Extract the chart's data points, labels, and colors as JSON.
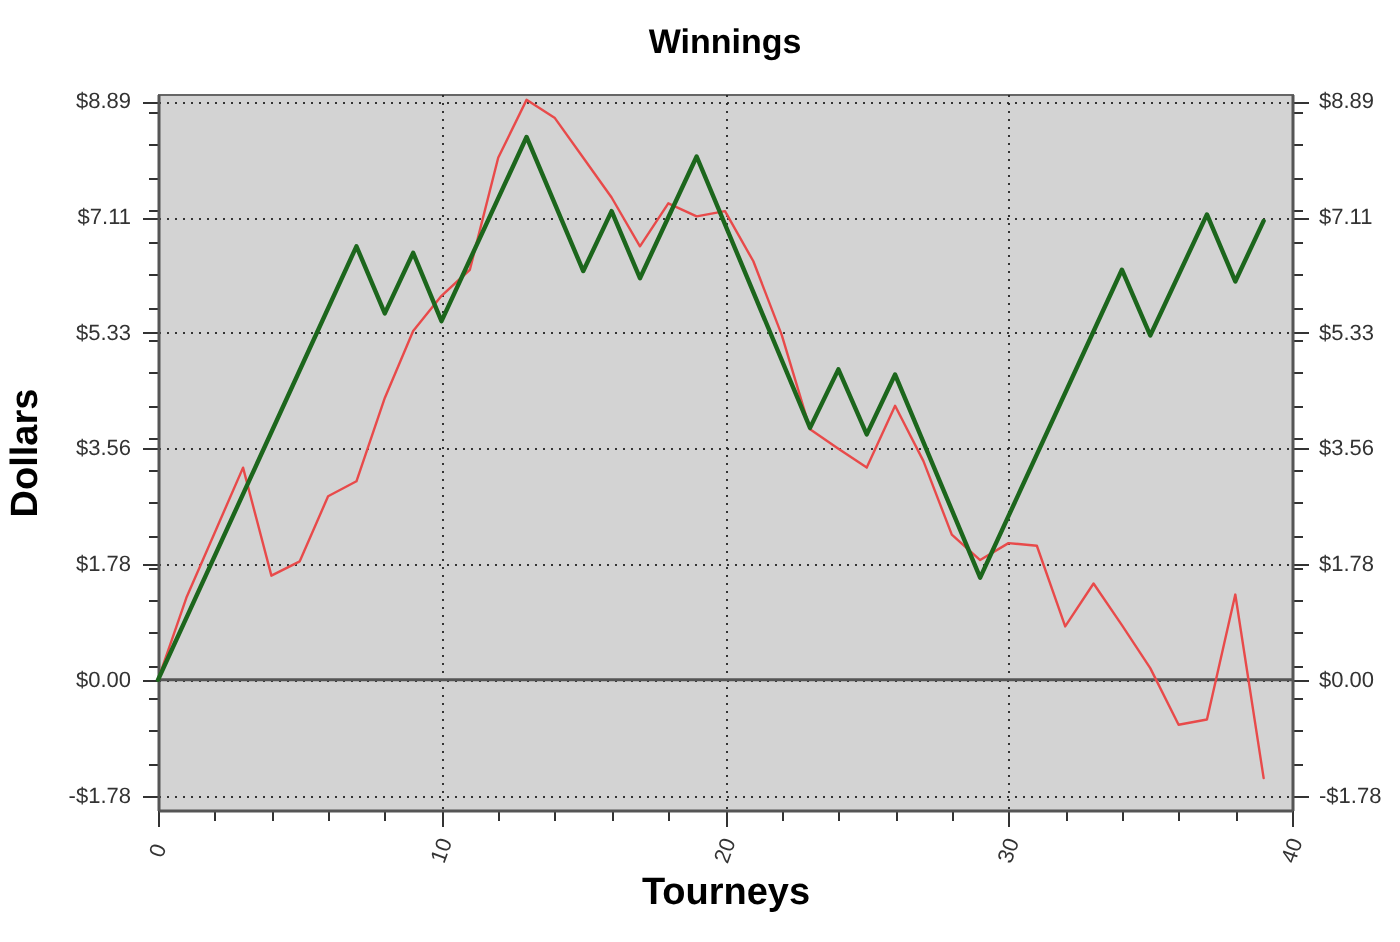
{
  "chart_data": {
    "type": "line",
    "title": "Winnings",
    "xlabel": "Tourneys",
    "ylabel": "Dollars",
    "xlim": [
      0,
      40
    ],
    "xticks": [
      0,
      {
        "value": 2,
        "label": null
      },
      {
        "value": 4,
        "label": null
      },
      {
        "value": 6,
        "label": null
      },
      {
        "value": 8,
        "label": null
      },
      10,
      {
        "value": 12,
        "label": null
      },
      {
        "value": 14,
        "label": null
      },
      {
        "value": 16,
        "label": null
      },
      {
        "value": 18,
        "label": null
      },
      20,
      {
        "value": 22,
        "label": null
      },
      {
        "value": 24,
        "label": null
      },
      {
        "value": 26,
        "label": null
      },
      {
        "value": 28,
        "label": null
      },
      30,
      {
        "value": 32,
        "label": null
      },
      {
        "value": 34,
        "label": null
      },
      {
        "value": 36,
        "label": null
      },
      {
        "value": 38,
        "label": null
      },
      40
    ],
    "ylim": [
      -2.0,
      9.0
    ],
    "yticks": [
      {
        "value": -1.78,
        "label": "-$1.78"
      },
      {
        "value": -1.28,
        "label": null
      },
      {
        "value": -0.78,
        "label": null
      },
      {
        "value": -0.28,
        "label": null
      },
      {
        "value": 0,
        "label": "$0.00"
      },
      {
        "value": 0.22,
        "label": null
      },
      {
        "value": 0.72,
        "label": null
      },
      {
        "value": 1.22,
        "label": null
      },
      {
        "value": 1.72,
        "label": null
      },
      {
        "value": 1.78,
        "label": "$1.78"
      },
      {
        "value": 2.22,
        "label": null
      },
      {
        "value": 2.72,
        "label": null
      },
      {
        "value": 3.22,
        "label": null
      },
      {
        "value": 3.56,
        "label": "$3.56"
      },
      {
        "value": 3.72,
        "label": null
      },
      {
        "value": 4.22,
        "label": null
      },
      {
        "value": 4.72,
        "label": null
      },
      {
        "value": 5.22,
        "label": null
      },
      {
        "value": 5.33,
        "label": "$5.33"
      },
      {
        "value": 5.72,
        "label": null
      },
      {
        "value": 6.22,
        "label": null
      },
      {
        "value": 6.72,
        "label": null
      },
      {
        "value": 7.11,
        "label": "$7.11"
      },
      {
        "value": 7.22,
        "label": null
      },
      {
        "value": 7.72,
        "label": null
      },
      {
        "value": 8.22,
        "label": null
      },
      {
        "value": 8.72,
        "label": null
      },
      {
        "value": 8.89,
        "label": "$8.89"
      }
    ],
    "y2lim": [
      -2.0,
      9.0
    ],
    "y2ticks": [
      {
        "value": -1.78,
        "label": "-$1.78"
      },
      {
        "value": -1.28,
        "label": null
      },
      {
        "value": -0.78,
        "label": null
      },
      {
        "value": -0.28,
        "label": null
      },
      {
        "value": 0,
        "label": "$0.00"
      },
      {
        "value": 0.22,
        "label": null
      },
      {
        "value": 0.72,
        "label": null
      },
      {
        "value": 1.22,
        "label": null
      },
      {
        "value": 1.72,
        "label": null
      },
      {
        "value": 1.78,
        "label": "$1.78"
      },
      {
        "value": 2.22,
        "label": null
      },
      {
        "value": 2.72,
        "label": null
      },
      {
        "value": 3.22,
        "label": null
      },
      {
        "value": 3.56,
        "label": "$3.56"
      },
      {
        "value": 3.72,
        "label": null
      },
      {
        "value": 4.22,
        "label": null
      },
      {
        "value": 4.72,
        "label": null
      },
      {
        "value": 5.22,
        "label": null
      },
      {
        "value": 5.33,
        "label": "$5.33"
      },
      {
        "value": 5.72,
        "label": null
      },
      {
        "value": 6.22,
        "label": null
      },
      {
        "value": 6.72,
        "label": null
      },
      {
        "value": 7.11,
        "label": "$7.11"
      },
      {
        "value": 7.22,
        "label": null
      },
      {
        "value": 7.72,
        "label": null
      },
      {
        "value": 8.22,
        "label": null
      },
      {
        "value": 8.72,
        "label": null
      },
      {
        "value": 8.89,
        "label": "$8.89"
      }
    ],
    "grid": true,
    "line_style": "solid",
    "ref_lines": [
      {
        "axis": "y",
        "value": 0,
        "color": "#555555"
      }
    ],
    "series": [
      {
        "color": "#e84a4a",
        "x": [
          0,
          1,
          2,
          3,
          4,
          5,
          6,
          7,
          8,
          9,
          10,
          11,
          12,
          13,
          14,
          15,
          16,
          17,
          18,
          19,
          20,
          21,
          22,
          23,
          24,
          25,
          26,
          27,
          28,
          29,
          30,
          31,
          32,
          33,
          34,
          35,
          36,
          37,
          38,
          39
        ],
        "values": [
          0,
          1.26,
          2.26,
          3.26,
          1.6,
          1.82,
          2.82,
          3.05,
          4.33,
          5.36,
          5.9,
          6.3,
          8.02,
          8.91,
          8.63,
          8.02,
          7.41,
          6.66,
          7.32,
          7.12,
          7.2,
          6.43,
          5.3,
          3.85,
          3.55,
          3.26,
          4.21,
          3.36,
          2.23,
          1.84,
          2.1,
          2.06,
          0.82,
          1.48,
          0.84,
          0.18,
          -0.69,
          -0.61,
          1.31,
          -1.51
        ]
      },
      {
        "color": "#1c661c",
        "x": [
          0,
          7,
          8,
          9,
          10,
          13,
          15,
          16,
          17,
          19,
          23,
          24,
          25,
          26,
          29,
          34,
          35,
          37,
          38,
          39
        ],
        "values": [
          0,
          6.66,
          5.63,
          6.56,
          5.51,
          8.34,
          6.28,
          7.2,
          6.17,
          8.04,
          3.87,
          4.77,
          3.77,
          4.69,
          1.57,
          6.3,
          5.29,
          7.15,
          6.12,
          7.05
        ]
      }
    ]
  }
}
